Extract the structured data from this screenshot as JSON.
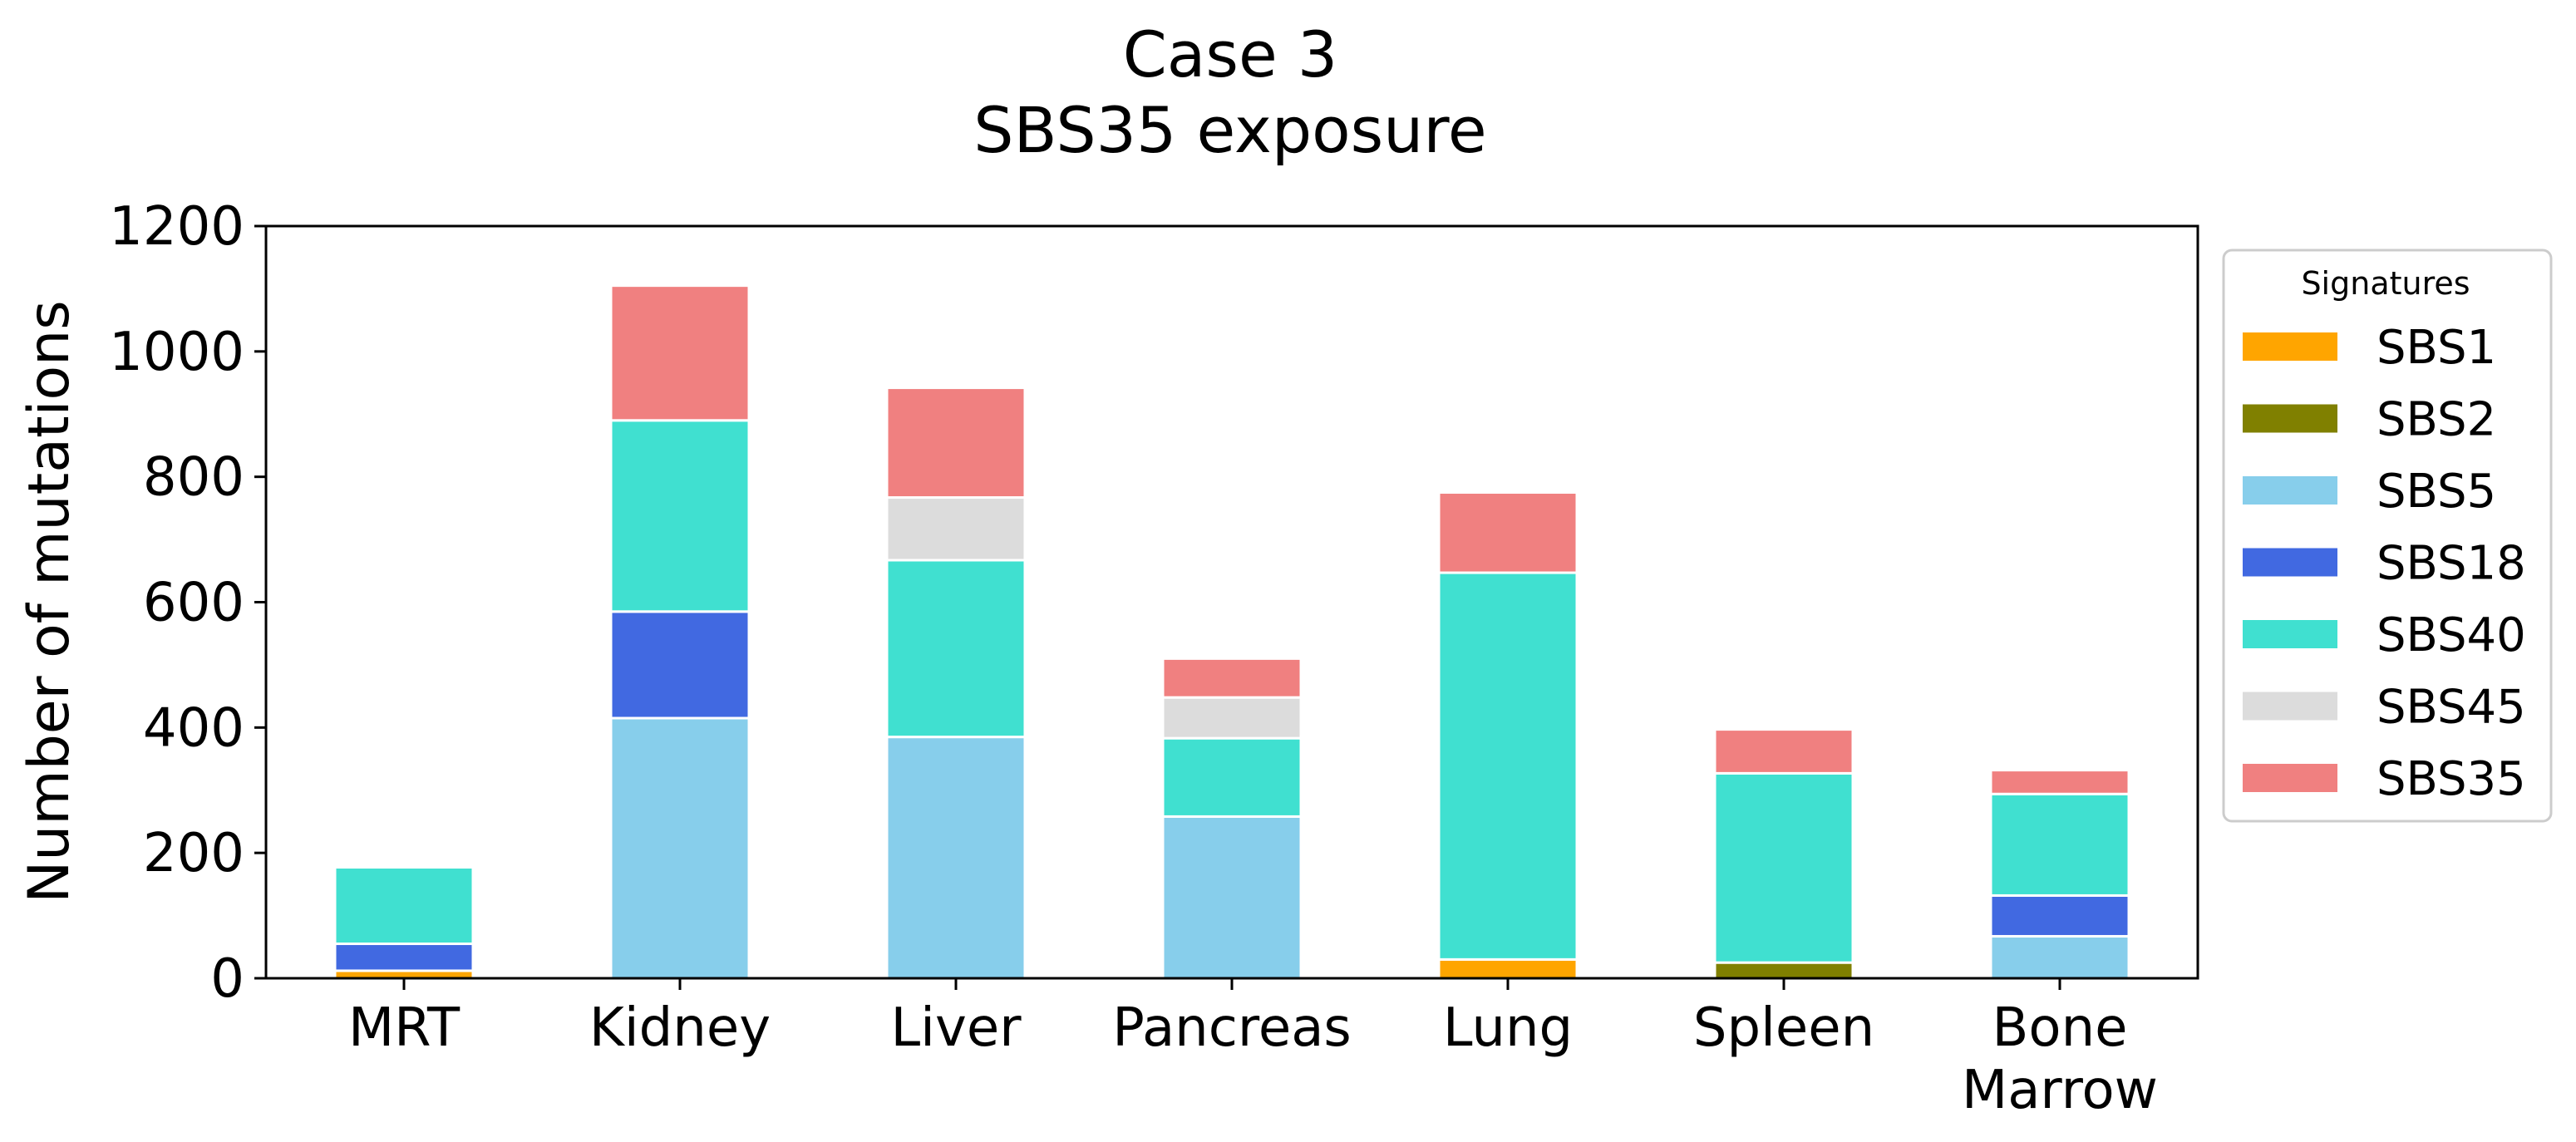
{
  "chart_data": {
    "type": "bar",
    "stacked": true,
    "title": [
      "Case 3",
      "SBS35 exposure"
    ],
    "xlabel": "",
    "ylabel": "Number of mutations",
    "ylim": [
      0,
      1200
    ],
    "yticks": [
      0,
      200,
      400,
      600,
      800,
      1000,
      1200
    ],
    "grid": false,
    "categories": [
      [
        "MRT"
      ],
      [
        "Kidney"
      ],
      [
        "Liver"
      ],
      [
        "Pancreas"
      ],
      [
        "Lung"
      ],
      [
        "Spleen"
      ],
      [
        "Bone",
        "Marrow"
      ]
    ],
    "legend": {
      "title": "Signatures",
      "position": "right"
    },
    "series": [
      {
        "name": "SBS1",
        "color": "#FFA500",
        "values": [
          12,
          0,
          0,
          0,
          30,
          0,
          0
        ]
      },
      {
        "name": "SBS2",
        "color": "#808000",
        "values": [
          0,
          0,
          0,
          0,
          0,
          25,
          0
        ]
      },
      {
        "name": "SBS5",
        "color": "#87CEEB",
        "values": [
          0,
          415,
          385,
          258,
          0,
          0,
          67
        ]
      },
      {
        "name": "SBS18",
        "color": "#4169E1",
        "values": [
          43,
          170,
          0,
          0,
          0,
          0,
          65
        ]
      },
      {
        "name": "SBS40",
        "color": "#40E0D0",
        "values": [
          122,
          305,
          282,
          125,
          617,
          302,
          162
        ]
      },
      {
        "name": "SBS45",
        "color": "#DCDCDC",
        "values": [
          0,
          0,
          100,
          65,
          0,
          0,
          0
        ]
      },
      {
        "name": "SBS35",
        "color": "#F08080",
        "values": [
          0,
          215,
          175,
          62,
          128,
          70,
          38
        ]
      }
    ]
  }
}
